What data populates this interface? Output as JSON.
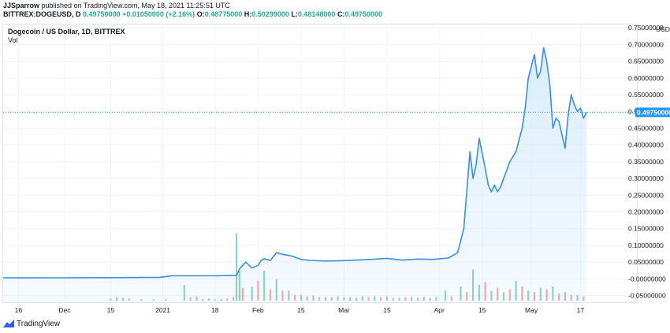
{
  "publish": {
    "author": "JJSparrow",
    "text": " published on TradingView.com, May 18, 2021 11:25:51 UTC"
  },
  "quote": {
    "symbol": "BITTREX:DOGEUSD, D",
    "last": "0.49750000",
    "change": "+0.01050000 (+2.16%)",
    "open_label": "O:",
    "open": "0.48775000",
    "high_label": "H:",
    "high": "0.50299000",
    "low_label": "L:",
    "low": "0.48148000",
    "close_label": "C:",
    "close": "0.49750000"
  },
  "legend": {
    "title": "Dogecoin / US Dollar, 1D, BITTREX",
    "vol": "Vol"
  },
  "footer": {
    "brand": "TradingView"
  },
  "colors": {
    "line": "#3b8fe0",
    "area": "#d8ecfb",
    "up": "#8fd1c5",
    "down": "#f0a8a8",
    "grid": "#f0f3fa",
    "tag": "#2196f3"
  },
  "chart_data": {
    "type": "area",
    "currency": "USD",
    "y_tick_labels": [
      "0.75000000",
      "0.70000000",
      "0.65000000",
      "0.60000000",
      "0.55000000",
      "0.50000000",
      "0.45000000",
      "0.40000000",
      "0.35000000",
      "0.30000000",
      "0.25000000",
      "0.20000000",
      "0.15000000",
      "0.10000000",
      "0.05000000",
      "-0.00000000",
      "-0.05000000"
    ],
    "y_ticks": [
      0.75,
      0.7,
      0.65,
      0.6,
      0.55,
      0.5,
      0.45,
      0.4,
      0.35,
      0.3,
      0.25,
      0.2,
      0.15,
      0.1,
      0.05,
      0,
      -0.05
    ],
    "ylim": [
      -0.07,
      0.76
    ],
    "last_price_label": "0.49750000",
    "last_price": 0.4975,
    "x_tick_labels": [
      {
        "day": 0,
        "label": "16"
      },
      {
        "day": 15,
        "label": "Dec"
      },
      {
        "day": 30,
        "label": "15"
      },
      {
        "day": 47,
        "label": "2021"
      },
      {
        "day": 64,
        "label": "18"
      },
      {
        "day": 78,
        "label": "Feb"
      },
      {
        "day": 92,
        "label": "15"
      },
      {
        "day": 106,
        "label": "Mar"
      },
      {
        "day": 120,
        "label": "15"
      },
      {
        "day": 137,
        "label": "Apr"
      },
      {
        "day": 151,
        "label": "15"
      },
      {
        "day": 167,
        "label": "May"
      },
      {
        "day": 183,
        "label": "17"
      }
    ],
    "series": [
      {
        "x": [
          -5,
          0,
          15,
          30,
          46,
          50,
          64,
          71,
          72,
          74,
          76,
          78,
          79,
          80,
          82,
          84,
          86,
          88,
          90,
          92,
          95,
          100,
          105,
          110,
          115,
          120,
          125,
          130,
          135,
          140,
          143,
          145,
          147,
          148,
          149,
          150,
          152,
          153,
          154,
          155,
          156,
          157,
          158,
          160,
          162,
          164,
          165,
          166,
          168,
          169,
          170,
          171,
          172,
          173,
          174,
          175,
          176,
          178,
          179,
          180,
          181,
          182,
          183,
          184,
          185
        ],
        "values": [
          0.0028,
          0.0029,
          0.003,
          0.0035,
          0.0045,
          0.009,
          0.009,
          0.01,
          0.03,
          0.05,
          0.032,
          0.04,
          0.055,
          0.06,
          0.055,
          0.078,
          0.073,
          0.07,
          0.065,
          0.058,
          0.055,
          0.053,
          0.054,
          0.056,
          0.058,
          0.061,
          0.056,
          0.059,
          0.058,
          0.062,
          0.078,
          0.15,
          0.38,
          0.3,
          0.34,
          0.42,
          0.33,
          0.28,
          0.26,
          0.28,
          0.26,
          0.275,
          0.3,
          0.35,
          0.38,
          0.45,
          0.51,
          0.6,
          0.67,
          0.6,
          0.62,
          0.69,
          0.65,
          0.58,
          0.45,
          0.48,
          0.47,
          0.39,
          0.49,
          0.55,
          0.52,
          0.5,
          0.51,
          0.48,
          0.4975
        ]
      }
    ],
    "volume": {
      "up_days": [
        30,
        32,
        34,
        40,
        44,
        54,
        58,
        62,
        64,
        66,
        70,
        71,
        72,
        76,
        80,
        84,
        88,
        92,
        96,
        100,
        104,
        108,
        112,
        116,
        120,
        124,
        128,
        132,
        136,
        139,
        144,
        148,
        150,
        154,
        158,
        162,
        166,
        170,
        174,
        178,
        182
      ],
      "up_values": [
        0.03,
        0.05,
        0.04,
        0.02,
        0.02,
        0.22,
        0.06,
        0.03,
        0.02,
        0.02,
        0.05,
        0.95,
        0.42,
        0.2,
        0.42,
        0.3,
        0.14,
        0.08,
        0.07,
        0.05,
        0.06,
        0.05,
        0.06,
        0.06,
        0.06,
        0.04,
        0.05,
        0.05,
        0.05,
        0.14,
        0.2,
        0.44,
        0.22,
        0.14,
        0.12,
        0.28,
        0.14,
        0.18,
        0.2,
        0.12,
        0.08
      ],
      "down_days": [
        36,
        48,
        56,
        60,
        68,
        73,
        78,
        82,
        86,
        90,
        94,
        98,
        102,
        106,
        110,
        114,
        118,
        122,
        126,
        130,
        134,
        141,
        146,
        152,
        156,
        160,
        164,
        168,
        172,
        176,
        180,
        184
      ],
      "down_values": [
        0.03,
        0.02,
        0.05,
        0.02,
        0.03,
        0.18,
        0.28,
        0.16,
        0.14,
        0.08,
        0.06,
        0.05,
        0.05,
        0.05,
        0.04,
        0.05,
        0.05,
        0.04,
        0.05,
        0.04,
        0.04,
        0.06,
        0.12,
        0.26,
        0.18,
        0.16,
        0.2,
        0.12,
        0.16,
        0.1,
        0.08,
        0.06
      ]
    }
  }
}
